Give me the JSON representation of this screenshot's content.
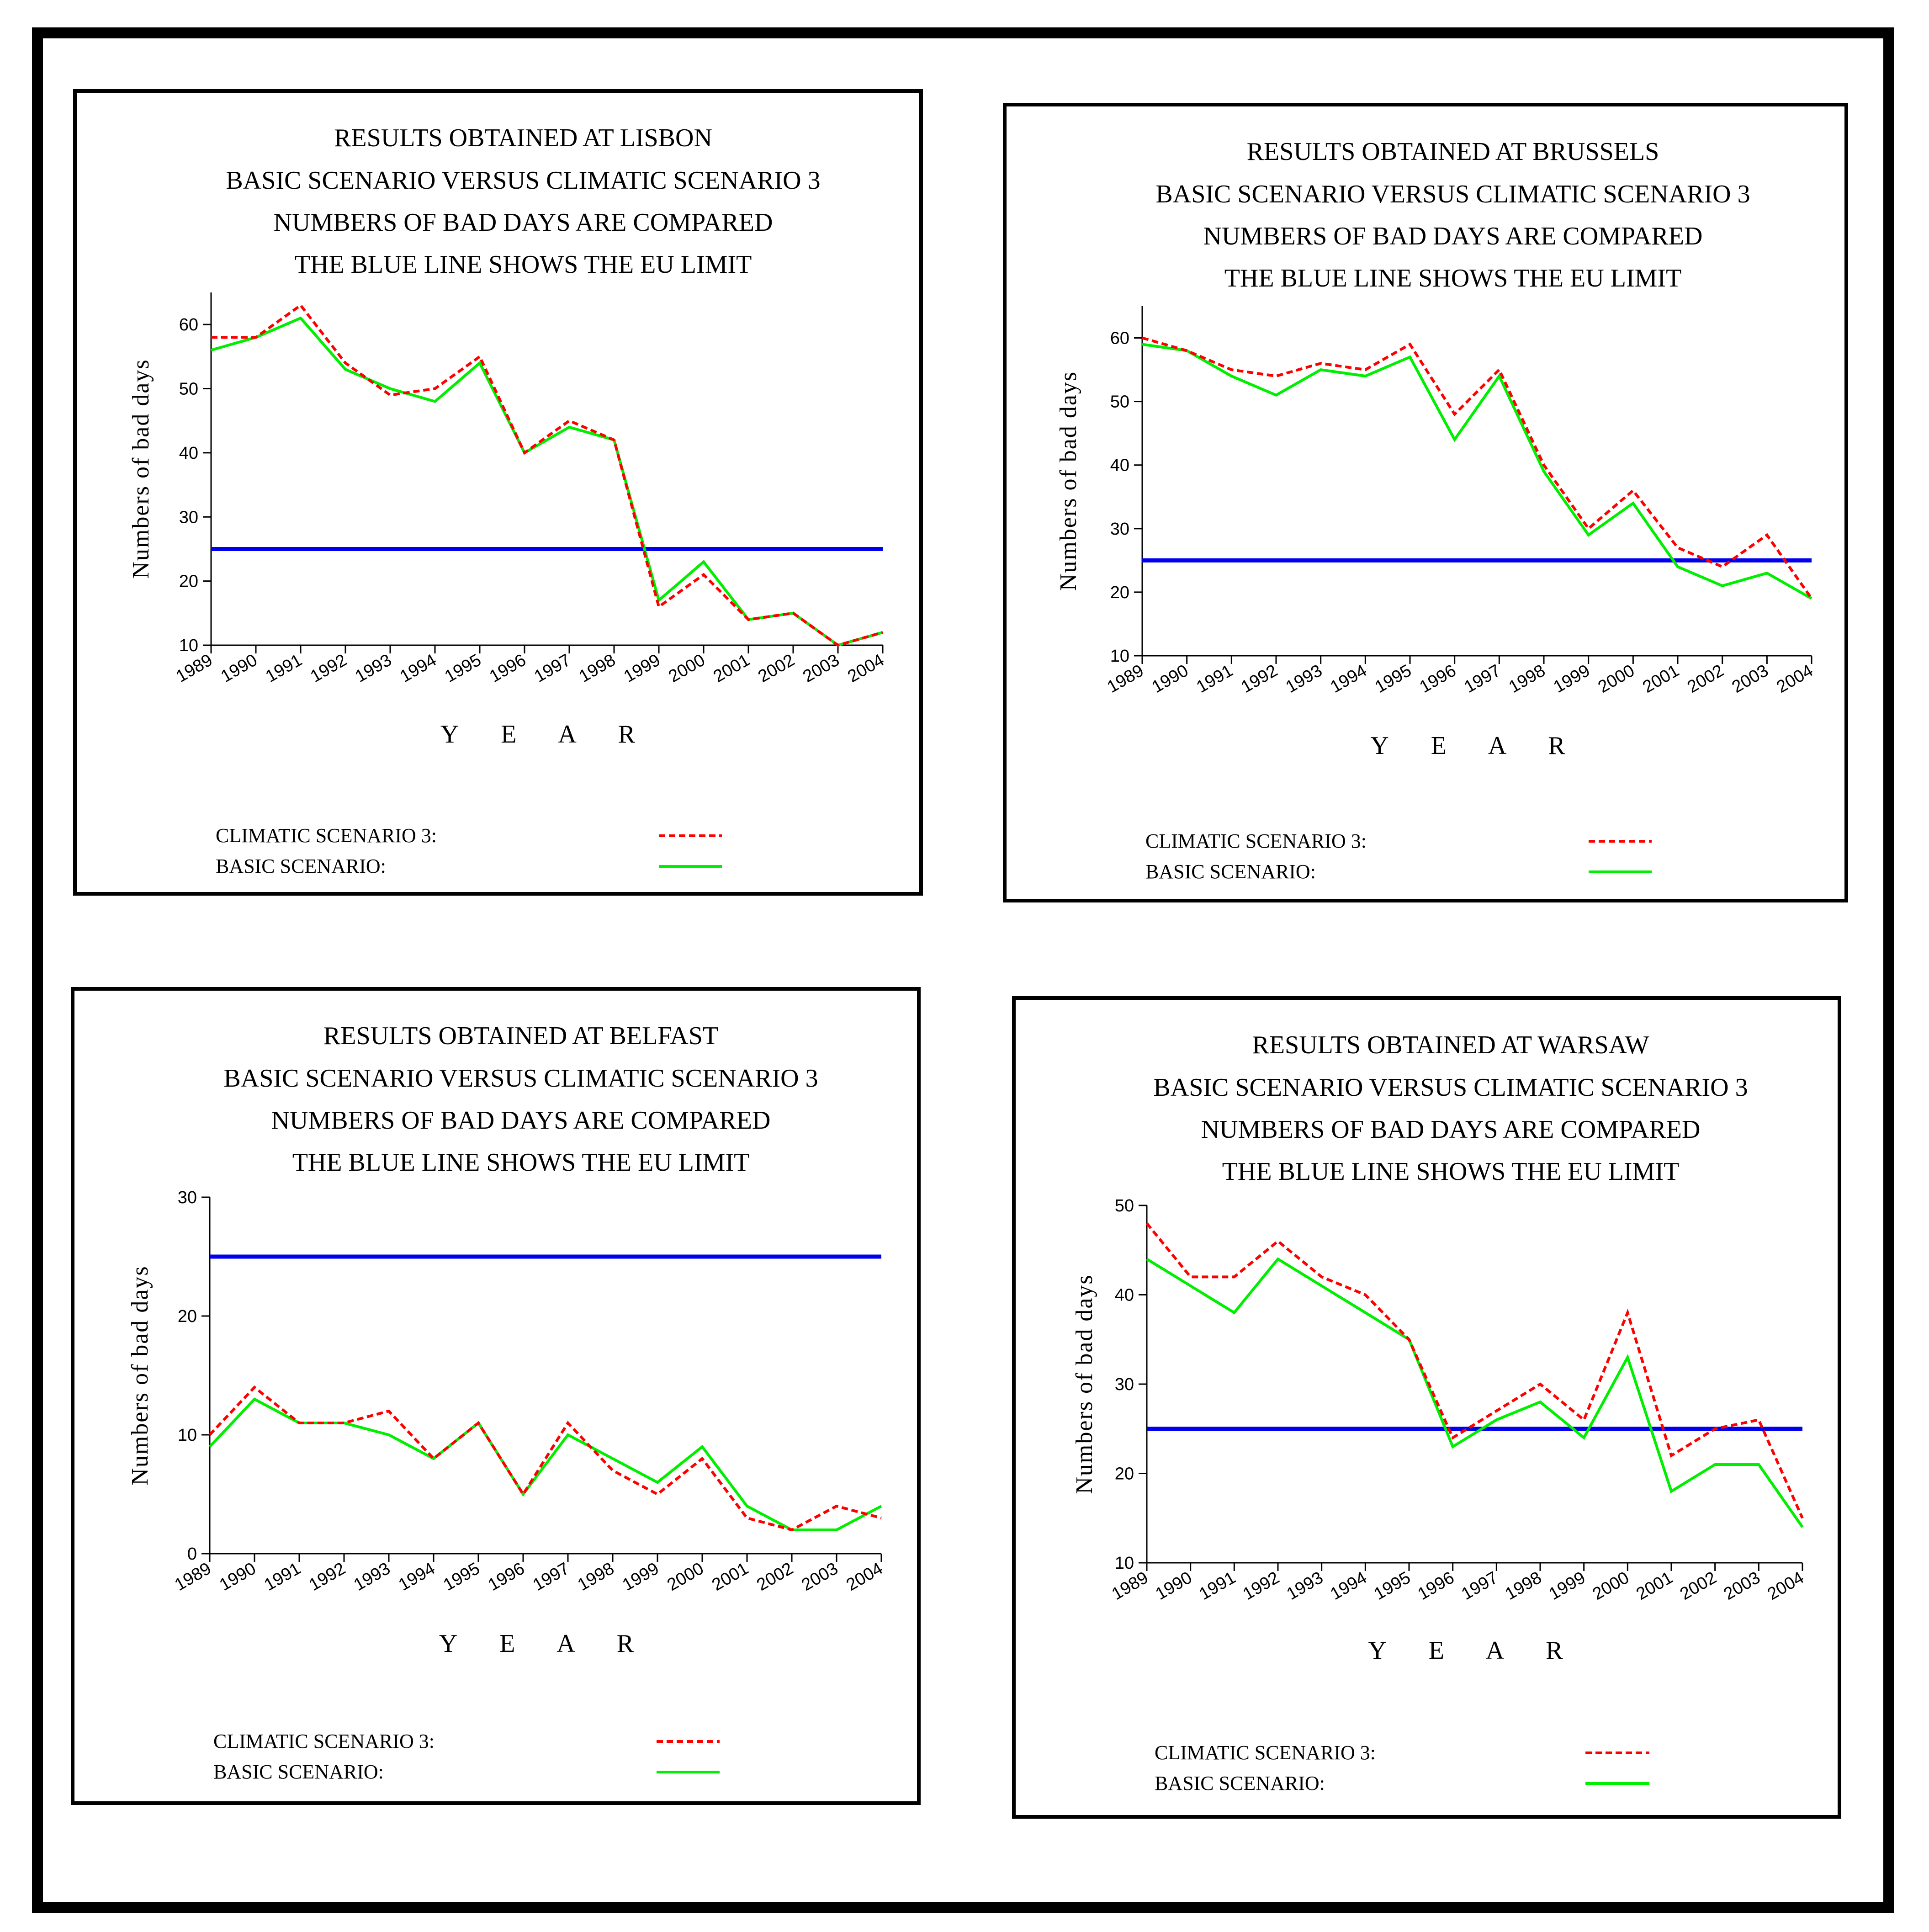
{
  "colors": {
    "limit": "#0000ee",
    "climatic": "#ff0000",
    "basic": "#00ee00",
    "axis": "#000000"
  },
  "chart_data": [
    {
      "type": "line",
      "title": [
        "RESULTS OBTAINED AT LISBON",
        "BASIC SCENARIO VERSUS CLIMATIC SCENARIO 3",
        "NUMBERS OF BAD DAYS ARE COMPARED",
        "THE BLUE LINE SHOWS THE EU LIMIT"
      ],
      "xlabel": "YEAR",
      "ylabel": "Numbers of bad days",
      "categories": [
        "1989",
        "1990",
        "1991",
        "1992",
        "1993",
        "1994",
        "1995",
        "1996",
        "1997",
        "1998",
        "1999",
        "2000",
        "2001",
        "2002",
        "2003",
        "2004"
      ],
      "ylim": [
        10,
        65
      ],
      "yticks": [
        10,
        20,
        30,
        40,
        50,
        60
      ],
      "eu_limit": 25,
      "series": [
        {
          "name": "CLIMATIC SCENARIO 3:",
          "style": "dashed",
          "values": [
            58,
            58,
            63,
            54,
            49,
            50,
            55,
            40,
            45,
            42,
            16,
            21,
            14,
            15,
            10,
            12
          ]
        },
        {
          "name": "BASIC SCENARIO:",
          "style": "solid",
          "values": [
            56,
            58,
            61,
            53,
            50,
            48,
            54,
            40,
            44,
            42,
            17,
            23,
            14,
            15,
            10,
            12
          ]
        }
      ]
    },
    {
      "type": "line",
      "title": [
        "RESULTS OBTAINED AT BRUSSELS",
        "BASIC SCENARIO VERSUS CLIMATIC SCENARIO 3",
        "NUMBERS OF BAD DAYS ARE COMPARED",
        "THE BLUE LINE SHOWS THE EU LIMIT"
      ],
      "xlabel": "YEAR",
      "ylabel": "Numbers of bad days",
      "categories": [
        "1989",
        "1990",
        "1991",
        "1992",
        "1993",
        "1994",
        "1995",
        "1996",
        "1997",
        "1998",
        "1999",
        "2000",
        "2001",
        "2002",
        "2003",
        "2004"
      ],
      "ylim": [
        10,
        65
      ],
      "yticks": [
        10,
        20,
        30,
        40,
        50,
        60
      ],
      "eu_limit": 25,
      "series": [
        {
          "name": "CLIMATIC SCENARIO 3:",
          "style": "dashed",
          "values": [
            60,
            58,
            55,
            54,
            56,
            55,
            59,
            48,
            55,
            40,
            30,
            36,
            27,
            24,
            29,
            19
          ]
        },
        {
          "name": "BASIC SCENARIO:",
          "style": "solid",
          "values": [
            59,
            58,
            54,
            51,
            55,
            54,
            57,
            44,
            54,
            39,
            29,
            34,
            24,
            21,
            23,
            19
          ]
        }
      ]
    },
    {
      "type": "line",
      "title": [
        "RESULTS OBTAINED AT BELFAST",
        "BASIC SCENARIO VERSUS CLIMATIC SCENARIO 3",
        "NUMBERS OF BAD DAYS ARE COMPARED",
        "THE BLUE LINE SHOWS THE EU LIMIT"
      ],
      "xlabel": "YEAR",
      "ylabel": "Numbers of bad days",
      "categories": [
        "1989",
        "1990",
        "1991",
        "1992",
        "1993",
        "1994",
        "1995",
        "1996",
        "1997",
        "1998",
        "1999",
        "2000",
        "2001",
        "2002",
        "2003",
        "2004"
      ],
      "ylim": [
        0,
        30
      ],
      "yticks": [
        0,
        10,
        20,
        30
      ],
      "eu_limit": 25,
      "series": [
        {
          "name": "CLIMATIC SCENARIO 3:",
          "style": "dashed",
          "values": [
            10,
            14,
            11,
            11,
            12,
            8,
            11,
            5,
            11,
            7,
            5,
            8,
            3,
            2,
            4,
            3
          ]
        },
        {
          "name": "BASIC SCENARIO:",
          "style": "solid",
          "values": [
            9,
            13,
            11,
            11,
            10,
            8,
            11,
            5,
            10,
            8,
            6,
            9,
            4,
            2,
            2,
            4
          ]
        }
      ]
    },
    {
      "type": "line",
      "title": [
        "RESULTS OBTAINED AT WARSAW",
        "BASIC SCENARIO VERSUS CLIMATIC SCENARIO 3",
        "NUMBERS OF BAD DAYS ARE COMPARED",
        "THE BLUE LINE SHOWS THE EU LIMIT"
      ],
      "xlabel": "YEAR",
      "ylabel": "Numbers of bad days",
      "categories": [
        "1989",
        "1990",
        "1991",
        "1992",
        "1993",
        "1994",
        "1995",
        "1996",
        "1997",
        "1998",
        "1999",
        "2000",
        "2001",
        "2002",
        "2003",
        "2004"
      ],
      "ylim": [
        10,
        50
      ],
      "yticks": [
        10,
        20,
        30,
        40,
        50
      ],
      "eu_limit": 25,
      "series": [
        {
          "name": "CLIMATIC SCENARIO 3:",
          "style": "dashed",
          "values": [
            48,
            42,
            42,
            46,
            42,
            40,
            35,
            24,
            27,
            30,
            26,
            38,
            22,
            25,
            26,
            15
          ]
        },
        {
          "name": "BASIC SCENARIO:",
          "style": "solid",
          "values": [
            44,
            41,
            38,
            44,
            41,
            38,
            35,
            23,
            26,
            28,
            24,
            33,
            18,
            21,
            21,
            14
          ]
        }
      ]
    }
  ]
}
